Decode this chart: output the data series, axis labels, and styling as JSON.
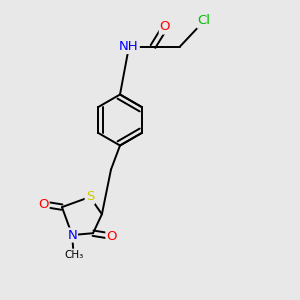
{
  "bg_color": "#e8e8e8",
  "bond_color": "#000000",
  "atom_colors": {
    "Cl": "#00bb00",
    "O": "#ff0000",
    "N": "#0000ff",
    "S": "#cccc00",
    "C": "#000000",
    "H": "#559999"
  },
  "font_size": 8.5,
  "bond_width": 1.4,
  "figsize": [
    3.0,
    3.0
  ],
  "dpi": 100
}
